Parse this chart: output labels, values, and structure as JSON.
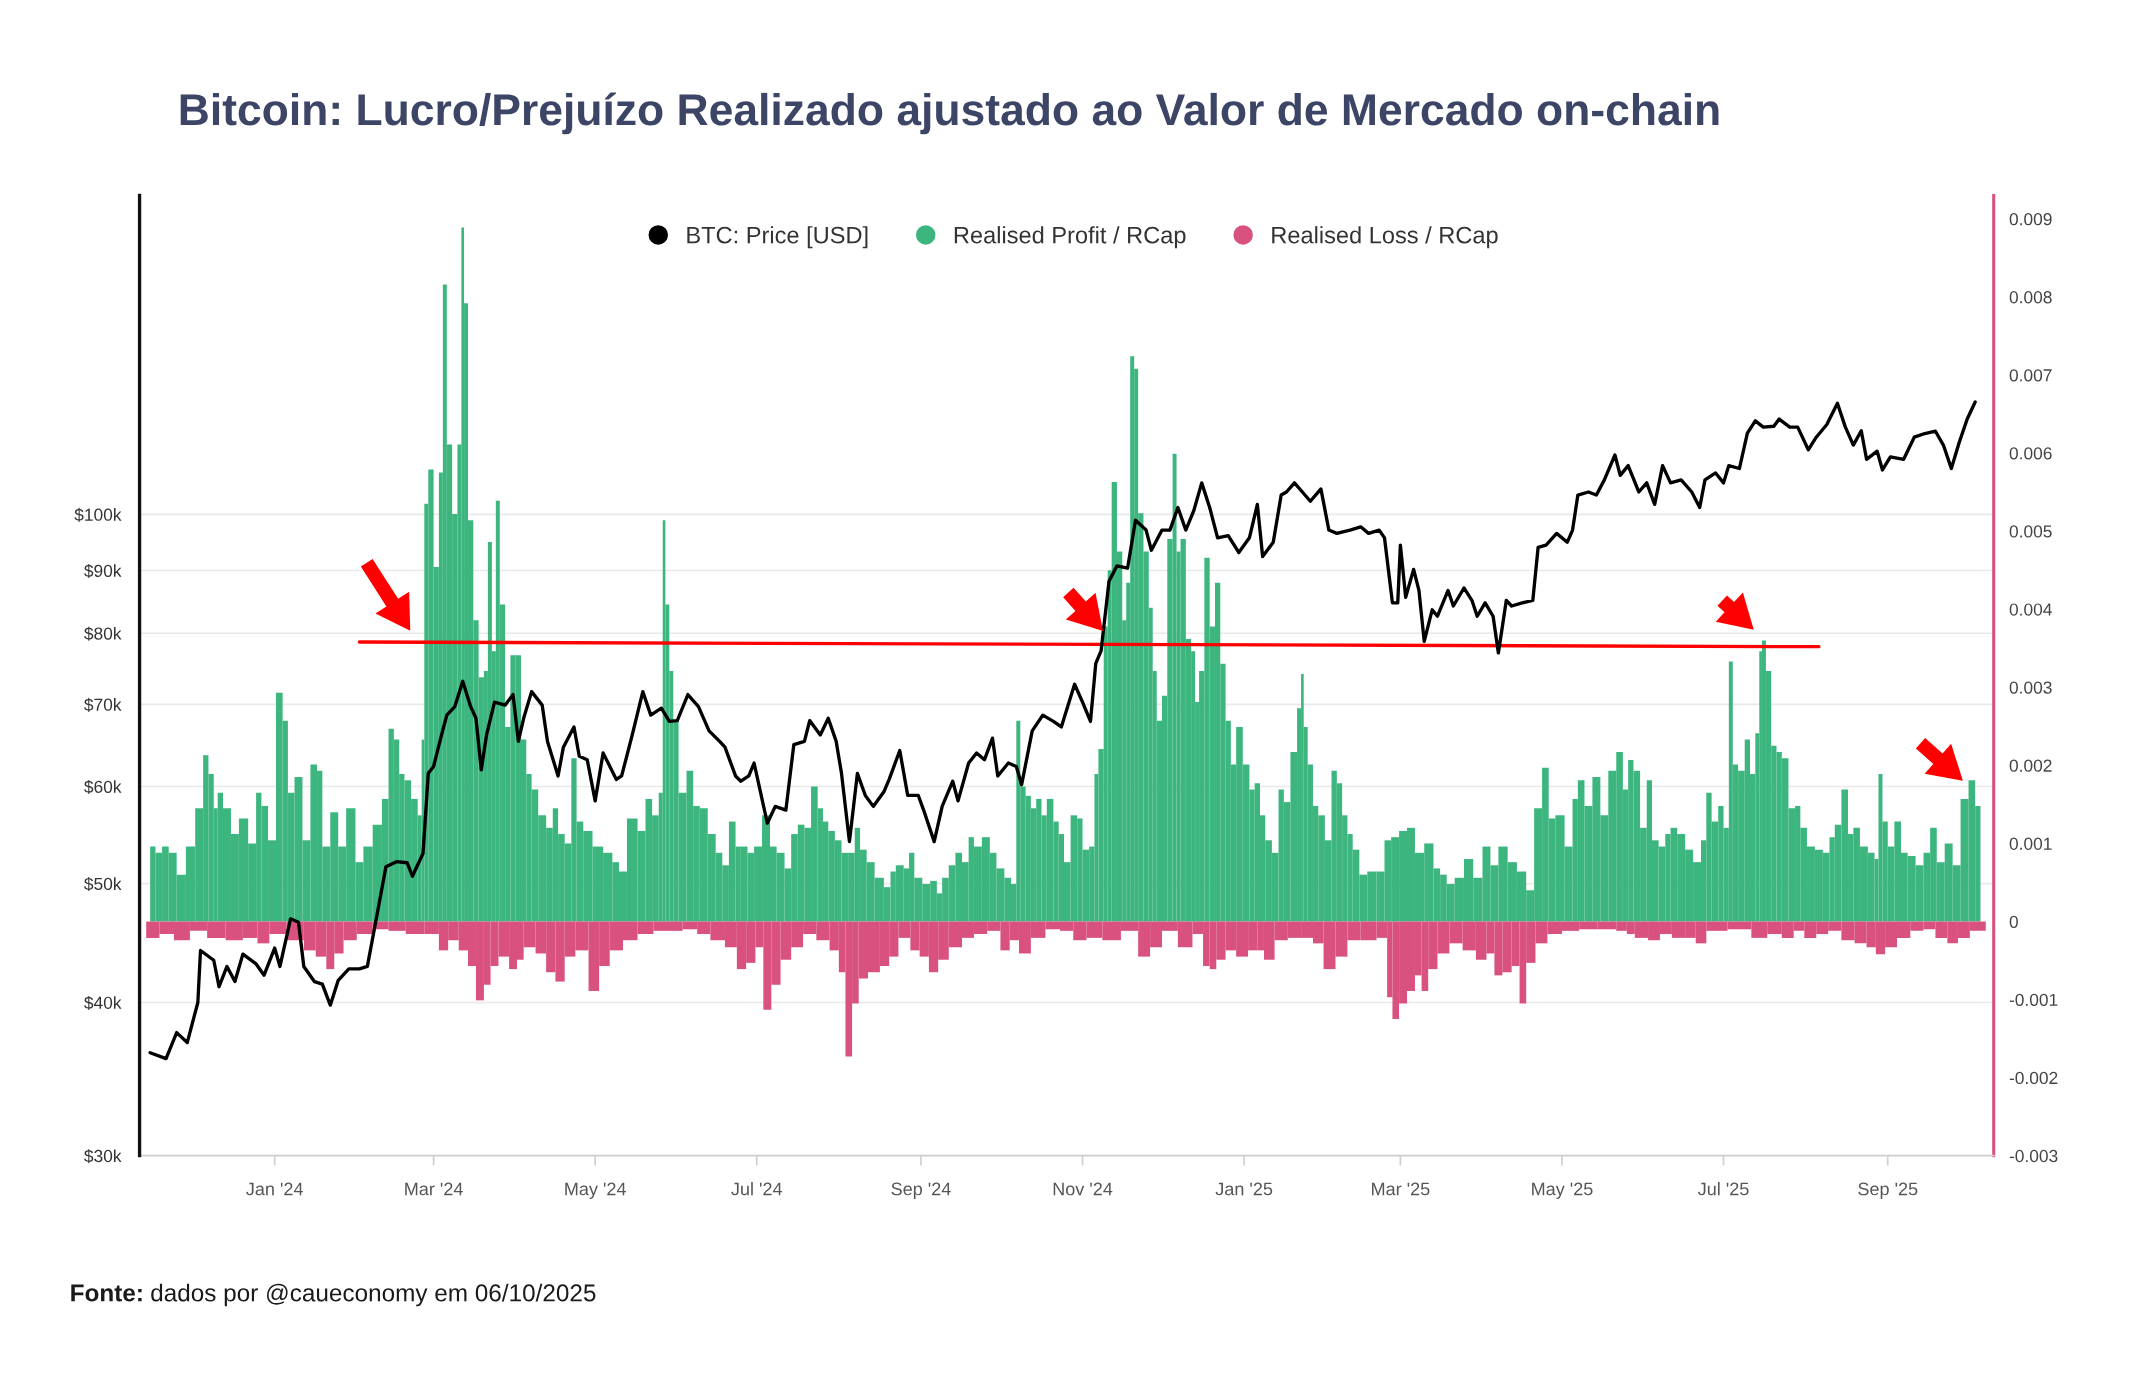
{
  "chart_data": {
    "type": "bar",
    "title": "Bitcoin: Lucro/Prejuízo Realizado ajustado ao Valor de Mercado on-chain",
    "annotations": [
      "Fonte: dados por @caueconomy em 06/10/2025"
    ],
    "stacked": true,
    "xlim": [
      "2023-11-11",
      "2025-10-11"
    ],
    "xticks": [
      {
        "value": "2024-01-01",
        "label": "Jan '24"
      },
      {
        "value": "2024-03-01",
        "label": "Mar '24"
      },
      {
        "value": "2024-05-01",
        "label": "May '24"
      },
      {
        "value": "2024-07-01",
        "label": "Jul '24"
      },
      {
        "value": "2024-09-01",
        "label": "Sep '24"
      },
      {
        "value": "2024-11-01",
        "label": "Nov '24"
      },
      {
        "value": "2025-01-01",
        "label": "Jan '25"
      },
      {
        "value": "2025-03-01",
        "label": "Mar '25"
      },
      {
        "value": "2025-05-01",
        "label": "May '25"
      },
      {
        "value": "2025-07-01",
        "label": "Jul '25"
      },
      {
        "value": "2025-09-01",
        "label": "Sep '25"
      }
    ],
    "log": "y",
    "ylim": [
      30000,
      182000
    ],
    "yticks": [
      {
        "value": 30000,
        "label": "$30k"
      },
      {
        "value": 40000,
        "label": "$40k"
      },
      {
        "value": 50000,
        "label": "$50k"
      },
      {
        "value": 60000,
        "label": "$60k"
      },
      {
        "value": 70000,
        "label": "$70k"
      },
      {
        "value": 80000,
        "label": "$80k"
      },
      {
        "value": 90000,
        "label": "$90k"
      },
      {
        "value": 100000,
        "label": "$100k"
      }
    ],
    "y2lim": [
      -0.003,
      0.0093
    ],
    "y2ticks": [
      -0.003,
      -0.002,
      -0.001,
      0,
      0.001,
      0.002,
      0.003,
      0.004,
      0.005,
      0.006,
      0.007,
      0.008,
      0.009
    ],
    "grid": "y",
    "legend": "top",
    "series": [
      {
        "name": "BTC: Price [USD]",
        "type": "line",
        "axis": "y",
        "color": "#000000",
        "x": [
          "2023-11-15",
          "2023-11-21",
          "2023-11-25",
          "2023-11-29",
          "2023-12-03",
          "2023-12-04",
          "2023-12-09",
          "2023-12-11",
          "2023-12-14",
          "2023-12-17",
          "2023-12-20",
          "2023-12-25",
          "2023-12-28",
          "2024-01-01",
          "2024-01-03",
          "2024-01-07",
          "2024-01-10",
          "2024-01-12",
          "2024-01-16",
          "2024-01-19",
          "2024-01-22",
          "2024-01-25",
          "2024-01-29",
          "2024-02-02",
          "2024-02-05",
          "2024-02-09",
          "2024-02-12",
          "2024-02-16",
          "2024-02-20",
          "2024-02-22",
          "2024-02-26",
          "2024-02-28",
          "2024-03-01",
          "2024-03-04",
          "2024-03-06",
          "2024-03-09",
          "2024-03-12",
          "2024-03-15",
          "2024-03-17",
          "2024-03-19",
          "2024-03-21",
          "2024-03-24",
          "2024-03-28",
          "2024-03-31",
          "2024-04-02",
          "2024-04-04",
          "2024-04-07",
          "2024-04-11",
          "2024-04-13",
          "2024-04-17",
          "2024-04-19",
          "2024-04-23",
          "2024-04-25",
          "2024-04-28",
          "2024-05-01",
          "2024-05-04",
          "2024-05-09",
          "2024-05-11",
          "2024-05-15",
          "2024-05-19",
          "2024-05-22",
          "2024-05-26",
          "2024-05-29",
          "2024-06-01",
          "2024-06-05",
          "2024-06-09",
          "2024-06-13",
          "2024-06-17",
          "2024-06-19",
          "2024-06-23",
          "2024-06-25",
          "2024-06-28",
          "2024-06-30",
          "2024-07-05",
          "2024-07-08",
          "2024-07-12",
          "2024-07-15",
          "2024-07-19",
          "2024-07-21",
          "2024-07-25",
          "2024-07-28",
          "2024-07-31",
          "2024-08-02",
          "2024-08-05",
          "2024-08-08",
          "2024-08-11",
          "2024-08-14",
          "2024-08-18",
          "2024-08-20",
          "2024-08-24",
          "2024-08-27",
          "2024-08-31",
          "2024-09-02",
          "2024-09-06",
          "2024-09-09",
          "2024-09-13",
          "2024-09-15",
          "2024-09-19",
          "2024-09-22",
          "2024-09-25",
          "2024-09-28",
          "2024-09-30",
          "2024-10-04",
          "2024-10-07",
          "2024-10-09",
          "2024-10-13",
          "2024-10-17",
          "2024-10-21",
          "2024-10-24",
          "2024-10-29",
          "2024-11-01",
          "2024-11-04",
          "2024-11-06",
          "2024-11-08",
          "2024-11-11",
          "2024-11-14",
          "2024-11-18",
          "2024-11-21",
          "2024-11-25",
          "2024-11-27",
          "2024-12-01",
          "2024-12-04",
          "2024-12-07",
          "2024-12-10",
          "2024-12-13",
          "2024-12-16",
          "2024-12-19",
          "2024-12-22",
          "2024-12-26",
          "2024-12-30",
          "2025-01-03",
          "2025-01-06",
          "2025-01-08",
          "2025-01-12",
          "2025-01-15",
          "2025-01-17",
          "2025-01-20",
          "2025-01-23",
          "2025-01-26",
          "2025-01-30",
          "2025-02-02",
          "2025-02-05",
          "2025-02-10",
          "2025-02-14",
          "2025-02-17",
          "2025-02-21",
          "2025-02-23",
          "2025-02-26",
          "2025-02-28",
          "2025-03-01",
          "2025-03-03",
          "2025-03-06",
          "2025-03-08",
          "2025-03-10",
          "2025-03-13",
          "2025-03-15",
          "2025-03-19",
          "2025-03-21",
          "2025-03-25",
          "2025-03-28",
          "2025-03-30",
          "2025-04-02",
          "2025-04-05",
          "2025-04-07",
          "2025-04-10",
          "2025-04-12",
          "2025-04-16",
          "2025-04-20",
          "2025-04-22",
          "2025-04-25",
          "2025-04-29",
          "2025-05-03",
          "2025-05-05",
          "2025-05-07",
          "2025-05-11",
          "2025-05-14",
          "2025-05-17",
          "2025-05-21",
          "2025-05-23",
          "2025-05-26",
          "2025-05-30",
          "2025-06-02",
          "2025-06-05",
          "2025-06-08",
          "2025-06-11",
          "2025-06-15",
          "2025-06-19",
          "2025-06-22",
          "2025-06-24",
          "2025-06-28",
          "2025-07-01",
          "2025-07-03",
          "2025-07-07",
          "2025-07-10",
          "2025-07-13",
          "2025-07-16",
          "2025-07-20",
          "2025-07-22",
          "2025-07-26",
          "2025-07-29",
          "2025-08-02",
          "2025-08-05",
          "2025-08-09",
          "2025-08-13",
          "2025-08-16",
          "2025-08-19",
          "2025-08-22",
          "2025-08-24",
          "2025-08-28",
          "2025-08-30",
          "2025-09-02",
          "2025-09-07",
          "2025-09-11",
          "2025-09-15",
          "2025-09-19",
          "2025-09-22",
          "2025-09-25",
          "2025-09-28",
          "2025-10-01",
          "2025-10-04"
        ],
        "values": [
          36400,
          36000,
          37800,
          37100,
          40000,
          44100,
          43300,
          41200,
          42800,
          41600,
          43800,
          43000,
          42100,
          44300,
          42800,
          46800,
          46500,
          42800,
          41600,
          41400,
          39800,
          41700,
          42600,
          42600,
          42800,
          47600,
          51600,
          52100,
          52000,
          50700,
          52900,
          61500,
          62300,
          66100,
          68600,
          69700,
          73100,
          69700,
          68200,
          61900,
          66100,
          70300,
          69900,
          71300,
          65300,
          68200,
          71700,
          69900,
          65300,
          61200,
          64600,
          67100,
          63500,
          63100,
          58400,
          63900,
          60800,
          61200,
          66100,
          71700,
          68600,
          69500,
          67800,
          67900,
          71300,
          69700,
          66600,
          65300,
          64600,
          61200,
          60600,
          61200,
          62700,
          56000,
          57800,
          57400,
          64900,
          65300,
          67900,
          66100,
          68200,
          65300,
          61500,
          54100,
          61500,
          59000,
          57800,
          59400,
          60800,
          64200,
          59000,
          59000,
          57400,
          54100,
          57800,
          60600,
          58400,
          62700,
          63900,
          63100,
          65700,
          61200,
          62700,
          62300,
          60200,
          66600,
          68600,
          67800,
          67100,
          72700,
          70300,
          67800,
          75600,
          77400,
          88200,
          90800,
          90400,
          98900,
          97100,
          93500,
          97100,
          97100,
          101300,
          97100,
          100700,
          106100,
          101300,
          95700,
          96100,
          93100,
          95700,
          101900,
          92400,
          94900,
          103700,
          104300,
          106100,
          104300,
          102500,
          104900,
          97100,
          96500,
          97100,
          97700,
          96500,
          97100,
          95700,
          84700,
          84700,
          94400,
          85600,
          90200,
          86700,
          78800,
          83600,
          82600,
          86700,
          84200,
          87100,
          85100,
          82600,
          84700,
          82600,
          77100,
          85100,
          84200,
          84700,
          85100,
          94000,
          94400,
          96500,
          94900,
          97100,
          103700,
          104300,
          103700,
          106700,
          111800,
          107600,
          109600,
          104300,
          106100,
          101900,
          109600,
          106100,
          106700,
          104300,
          101300,
          106700,
          108100,
          106100,
          109600,
          109000,
          116500,
          119200,
          117800,
          118000,
          119600,
          117800,
          117800,
          112900,
          115600,
          118400,
          123200,
          117800,
          113900,
          117000,
          110900,
          112600,
          108700,
          111400,
          110900,
          115600,
          116400,
          116900,
          113900,
          109000,
          114500,
          119600,
          123500
        ]
      },
      {
        "name": "Realised Profit / RCap",
        "axis": "y2",
        "color": "#3cb67e",
        "x": [
          "2023-11-16",
          "2023-11-18",
          "2023-11-21",
          "2023-11-23",
          "2023-11-27",
          "2023-11-30",
          "2023-12-04",
          "2023-12-06",
          "2023-12-08",
          "2023-12-10",
          "2023-12-11",
          "2023-12-14",
          "2023-12-17",
          "2023-12-20",
          "2023-12-24",
          "2023-12-26",
          "2023-12-28",
          "2023-12-31",
          "2024-01-03",
          "2024-01-05",
          "2024-01-07",
          "2024-01-10",
          "2024-01-13",
          "2024-01-16",
          "2024-01-18",
          "2024-01-20",
          "2024-01-24",
          "2024-01-26",
          "2024-01-30",
          "2024-02-02",
          "2024-02-05",
          "2024-02-09",
          "2024-02-12",
          "2024-02-14",
          "2024-02-16",
          "2024-02-18",
          "2024-02-20",
          "2024-02-23",
          "2024-02-25",
          "2024-02-26",
          "2024-02-27",
          "2024-02-29",
          "2024-03-02",
          "2024-03-04",
          "2024-03-05",
          "2024-03-07",
          "2024-03-09",
          "2024-03-11",
          "2024-03-12",
          "2024-03-13",
          "2024-03-15",
          "2024-03-17",
          "2024-03-19",
          "2024-03-21",
          "2024-03-22",
          "2024-03-24",
          "2024-03-25",
          "2024-03-27",
          "2024-03-29",
          "2024-03-31",
          "2024-04-02",
          "2024-04-04",
          "2024-04-06",
          "2024-04-08",
          "2024-04-11",
          "2024-04-14",
          "2024-04-16",
          "2024-04-18",
          "2024-04-21",
          "2024-04-23",
          "2024-04-25",
          "2024-04-28",
          "2024-05-02",
          "2024-05-06",
          "2024-05-09",
          "2024-05-11",
          "2024-05-15",
          "2024-05-19",
          "2024-05-21",
          "2024-05-24",
          "2024-05-26",
          "2024-05-27",
          "2024-05-28",
          "2024-05-30",
          "2024-05-31",
          "2024-06-03",
          "2024-06-06",
          "2024-06-08",
          "2024-06-11",
          "2024-06-14",
          "2024-06-17",
          "2024-06-19",
          "2024-06-22",
          "2024-06-24",
          "2024-06-26",
          "2024-06-29",
          "2024-07-01",
          "2024-07-05",
          "2024-07-07",
          "2024-07-10",
          "2024-07-13",
          "2024-07-15",
          "2024-07-18",
          "2024-07-20",
          "2024-07-23",
          "2024-07-25",
          "2024-07-27",
          "2024-07-29",
          "2024-08-01",
          "2024-08-03",
          "2024-08-06",
          "2024-08-08",
          "2024-08-10",
          "2024-08-13",
          "2024-08-16",
          "2024-08-20",
          "2024-08-21",
          "2024-08-24",
          "2024-08-27",
          "2024-08-28",
          "2024-08-31",
          "2024-09-03",
          "2024-09-06",
          "2024-09-08",
          "2024-09-10",
          "2024-09-13",
          "2024-09-15",
          "2024-09-18",
          "2024-09-20",
          "2024-09-22",
          "2024-09-26",
          "2024-09-28",
          "2024-10-01",
          "2024-10-04",
          "2024-10-06",
          "2024-10-08",
          "2024-10-09",
          "2024-10-12",
          "2024-10-13",
          "2024-10-16",
          "2024-10-17",
          "2024-10-20",
          "2024-10-22",
          "2024-10-24",
          "2024-10-26",
          "2024-10-29",
          "2024-10-31",
          "2024-11-02",
          "2024-11-05",
          "2024-11-06",
          "2024-11-08",
          "2024-11-10",
          "2024-11-11",
          "2024-11-13",
          "2024-11-15",
          "2024-11-17",
          "2024-11-18",
          "2024-11-20",
          "2024-11-21",
          "2024-11-23",
          "2024-11-25",
          "2024-11-27",
          "2024-11-28",
          "2024-11-30",
          "2024-12-02",
          "2024-12-04",
          "2024-12-06",
          "2024-12-07",
          "2024-12-09",
          "2024-12-11",
          "2024-12-13",
          "2024-12-14",
          "2024-12-16",
          "2024-12-18",
          "2024-12-20",
          "2024-12-22",
          "2024-12-24",
          "2024-12-26",
          "2024-12-28",
          "2024-12-30",
          "2025-01-02",
          "2025-01-04",
          "2025-01-06",
          "2025-01-08",
          "2025-01-10",
          "2025-01-13",
          "2025-01-15",
          "2025-01-17",
          "2025-01-20",
          "2025-01-22",
          "2025-01-23",
          "2025-01-24",
          "2025-01-26",
          "2025-01-28",
          "2025-01-30",
          "2025-02-02",
          "2025-02-04",
          "2025-02-06",
          "2025-02-08",
          "2025-02-10",
          "2025-02-12",
          "2025-02-15",
          "2025-02-18",
          "2025-02-22",
          "2025-02-24",
          "2025-02-27",
          "2025-03-02",
          "2025-03-05",
          "2025-03-08",
          "2025-03-12",
          "2025-03-15",
          "2025-03-17",
          "2025-03-20",
          "2025-03-23",
          "2025-03-27",
          "2025-03-30",
          "2025-04-03",
          "2025-04-05",
          "2025-04-09",
          "2025-04-12",
          "2025-04-16",
          "2025-04-19",
          "2025-04-22",
          "2025-04-25",
          "2025-04-27",
          "2025-04-30",
          "2025-05-04",
          "2025-05-06",
          "2025-05-08",
          "2025-05-11",
          "2025-05-14",
          "2025-05-17",
          "2025-05-20",
          "2025-05-23",
          "2025-05-25",
          "2025-05-27",
          "2025-05-29",
          "2025-06-01",
          "2025-06-03",
          "2025-06-05",
          "2025-06-08",
          "2025-06-10",
          "2025-06-12",
          "2025-06-15",
          "2025-06-18",
          "2025-06-21",
          "2025-06-24",
          "2025-06-25",
          "2025-06-28",
          "2025-06-30",
          "2025-07-02",
          "2025-07-04",
          "2025-07-05",
          "2025-07-08",
          "2025-07-10",
          "2025-07-12",
          "2025-07-14",
          "2025-07-15",
          "2025-07-16",
          "2025-07-18",
          "2025-07-20",
          "2025-07-22",
          "2025-07-24",
          "2025-07-27",
          "2025-07-29",
          "2025-07-31",
          "2025-08-03",
          "2025-08-06",
          "2025-08-09",
          "2025-08-11",
          "2025-08-13",
          "2025-08-16",
          "2025-08-18",
          "2025-08-20",
          "2025-08-23",
          "2025-08-26",
          "2025-08-28",
          "2025-08-29",
          "2025-08-31",
          "2025-09-02",
          "2025-09-05",
          "2025-09-07",
          "2025-09-10",
          "2025-09-13",
          "2025-09-16",
          "2025-09-18",
          "2025-09-21",
          "2025-09-24",
          "2025-09-27",
          "2025-09-30",
          "2025-10-03",
          "2025-10-05"
        ],
        "values": [
          0.00096,
          0.00088,
          0.00096,
          0.00088,
          0.0006,
          0.00096,
          0.00145,
          0.00213,
          0.00189,
          0.00145,
          0.00165,
          0.00145,
          0.00112,
          0.00132,
          0.001,
          0.00165,
          0.00148,
          0.00104,
          0.00293,
          0.00257,
          0.00165,
          0.00185,
          0.00104,
          0.00201,
          0.00193,
          0.00096,
          0.0014,
          0.00096,
          0.00145,
          0.00076,
          0.00096,
          0.00124,
          0.00157,
          0.00247,
          0.00233,
          0.00189,
          0.00181,
          0.00157,
          0.00136,
          0.00233,
          0.00535,
          0.00579,
          0.00454,
          0.00575,
          0.00816,
          0.00611,
          0.00522,
          0.00611,
          0.00889,
          0.00792,
          0.00514,
          0.00386,
          0.00313,
          0.00321,
          0.00486,
          0.00346,
          0.00539,
          0.00406,
          0.00249,
          0.00341,
          0.00341,
          0.00233,
          0.00189,
          0.00169,
          0.00136,
          0.0012,
          0.00145,
          0.00112,
          0.001,
          0.00209,
          0.00128,
          0.00116,
          0.00096,
          0.00088,
          0.00076,
          0.00064,
          0.00132,
          0.00116,
          0.00157,
          0.00136,
          0.00165,
          0.00514,
          0.00406,
          0.00321,
          0.00257,
          0.00165,
          0.00193,
          0.00148,
          0.00145,
          0.00112,
          0.00088,
          0.00072,
          0.00128,
          0.00096,
          0.00096,
          0.00088,
          0.00096,
          0.00136,
          0.00096,
          0.00088,
          0.00068,
          0.00112,
          0.00124,
          0.0012,
          0.00173,
          0.00145,
          0.00128,
          0.00116,
          0.00104,
          0.00088,
          0.00088,
          0.0012,
          0.00092,
          0.00076,
          0.00056,
          0.00044,
          0.00064,
          0.00072,
          0.00068,
          0.00088,
          0.00056,
          0.00048,
          0.00052,
          0.00036,
          0.00056,
          0.00072,
          0.00088,
          0.00076,
          0.00108,
          0.00096,
          0.00108,
          0.00088,
          0.00068,
          0.00056,
          0.00048,
          0.00257,
          0.00173,
          0.00161,
          0.00145,
          0.00157,
          0.00136,
          0.00157,
          0.00128,
          0.00112,
          0.00076,
          0.00136,
          0.00132,
          0.00092,
          0.00096,
          0.00189,
          0.00221,
          0.00378,
          0.0045,
          0.00563,
          0.00474,
          0.00386,
          0.00434,
          0.00724,
          0.00708,
          0.00523,
          0.00474,
          0.00402,
          0.00321,
          0.00257,
          0.00289,
          0.0049,
          0.00599,
          0.00474,
          0.0049,
          0.00362,
          0.00346,
          0.00281,
          0.00321,
          0.00466,
          0.00378,
          0.00434,
          0.0033,
          0.00257,
          0.00201,
          0.00249,
          0.00201,
          0.00169,
          0.00177,
          0.00136,
          0.00104,
          0.00088,
          0.00169,
          0.00153,
          0.00217,
          0.00273,
          0.00317,
          0.00249,
          0.00201,
          0.00148,
          0.00136,
          0.00104,
          0.00193,
          0.00177,
          0.00136,
          0.00112,
          0.00092,
          0.0006,
          0.00064,
          0.00064,
          0.00104,
          0.00108,
          0.00116,
          0.0012,
          0.00088,
          0.001,
          0.00068,
          0.0006,
          0.00048,
          0.00056,
          0.0008,
          0.00056,
          0.00096,
          0.00072,
          0.00096,
          0.00076,
          0.00064,
          0.0004,
          0.00145,
          0.00197,
          0.00132,
          0.00136,
          0.00096,
          0.00157,
          0.00181,
          0.00148,
          0.00185,
          0.00136,
          0.00193,
          0.00217,
          0.00169,
          0.00207,
          0.00193,
          0.0012,
          0.00181,
          0.00104,
          0.00096,
          0.00112,
          0.0012,
          0.00112,
          0.00092,
          0.00076,
          0.00104,
          0.00165,
          0.00128,
          0.00148,
          0.0012,
          0.00333,
          0.00201,
          0.00193,
          0.00233,
          0.00189,
          0.00241,
          0.00346,
          0.0036,
          0.00321,
          0.00225,
          0.00217,
          0.00209,
          0.00145,
          0.00148,
          0.0012,
          0.00096,
          0.00092,
          0.00088,
          0.00108,
          0.00124,
          0.00169,
          0.00112,
          0.0012,
          0.00096,
          0.00088,
          0.0008,
          0.00189,
          0.00128,
          0.00096,
          0.00128,
          0.00088,
          0.00084,
          0.00072,
          0.00088,
          0.0012,
          0.00076,
          0.001,
          0.00072,
          0.00157,
          0.00181,
          0.00148
        ]
      },
      {
        "name": "Realised Loss / RCap",
        "axis": "y2",
        "color": "#d9527f",
        "x": [
          "2023-11-16",
          "2023-11-21",
          "2023-11-27",
          "2023-12-03",
          "2023-12-10",
          "2023-12-17",
          "2023-12-23",
          "2023-12-28",
          "2024-01-01",
          "2024-01-10",
          "2024-01-14",
          "2024-01-19",
          "2024-01-22",
          "2024-01-25",
          "2024-01-29",
          "2024-02-04",
          "2024-02-10",
          "2024-02-16",
          "2024-02-23",
          "2024-03-01",
          "2024-03-05",
          "2024-03-08",
          "2024-03-13",
          "2024-03-15",
          "2024-03-19",
          "2024-03-21",
          "2024-03-24",
          "2024-03-27",
          "2024-04-01",
          "2024-04-02",
          "2024-04-06",
          "2024-04-11",
          "2024-04-14",
          "2024-04-18",
          "2024-04-21",
          "2024-04-26",
          "2024-05-01",
          "2024-05-04",
          "2024-05-09",
          "2024-05-14",
          "2024-05-20",
          "2024-05-26",
          "2024-05-31",
          "2024-06-06",
          "2024-06-11",
          "2024-06-16",
          "2024-06-22",
          "2024-06-25",
          "2024-06-29",
          "2024-07-02",
          "2024-07-05",
          "2024-07-08",
          "2024-07-12",
          "2024-07-16",
          "2024-07-21",
          "2024-07-26",
          "2024-07-31",
          "2024-08-02",
          "2024-08-05",
          "2024-08-07",
          "2024-08-10",
          "2024-08-14",
          "2024-08-19",
          "2024-08-21",
          "2024-08-26",
          "2024-08-30",
          "2024-09-02",
          "2024-09-06",
          "2024-09-09",
          "2024-09-14",
          "2024-09-19",
          "2024-09-23",
          "2024-09-29",
          "2024-10-03",
          "2024-10-06",
          "2024-10-10",
          "2024-10-15",
          "2024-10-21",
          "2024-10-26",
          "2024-10-31",
          "2024-11-05",
          "2024-11-12",
          "2024-11-19",
          "2024-11-25",
          "2024-11-28",
          "2024-12-04",
          "2024-12-10",
          "2024-12-15",
          "2024-12-18",
          "2024-12-20",
          "2024-12-23",
          "2024-12-27",
          "2024-12-31",
          "2025-01-05",
          "2025-01-07",
          "2025-01-10",
          "2025-01-15",
          "2025-01-20",
          "2025-01-25",
          "2025-01-29",
          "2025-02-02",
          "2025-02-07",
          "2025-02-11",
          "2025-02-17",
          "2025-02-23",
          "2025-02-25",
          "2025-02-27",
          "2025-03-02",
          "2025-03-05",
          "2025-03-08",
          "2025-03-10",
          "2025-03-13",
          "2025-03-17",
          "2025-03-22",
          "2025-03-27",
          "2025-04-01",
          "2025-04-04",
          "2025-04-07",
          "2025-04-10",
          "2025-04-14",
          "2025-04-16",
          "2025-04-19",
          "2025-04-23",
          "2025-04-28",
          "2025-05-04",
          "2025-05-11",
          "2025-05-18",
          "2025-05-25",
          "2025-05-26",
          "2025-05-31",
          "2025-06-05",
          "2025-06-09",
          "2025-06-14",
          "2025-06-19",
          "2025-06-22",
          "2025-06-27",
          "2025-07-08",
          "2025-07-15",
          "2025-07-20",
          "2025-07-26",
          "2025-07-29",
          "2025-08-03",
          "2025-08-07",
          "2025-08-12",
          "2025-08-17",
          "2025-08-22",
          "2025-08-26",
          "2025-08-29",
          "2025-09-02",
          "2025-09-07",
          "2025-09-12",
          "2025-09-17",
          "2025-09-21",
          "2025-09-26",
          "2025-09-29",
          "2025-10-05"
        ],
        "values": [
          -0.00021,
          -0.00016,
          -0.00024,
          -0.00012,
          -0.00021,
          -0.00024,
          -0.00021,
          -0.00028,
          -0.00016,
          -0.00024,
          -0.00037,
          -0.00045,
          -0.00061,
          -0.00041,
          -0.00024,
          -0.00016,
          -0.0001,
          -0.00012,
          -0.00016,
          -0.00016,
          -0.00037,
          -0.00024,
          -0.00037,
          -0.00057,
          -0.00101,
          -0.00081,
          -0.00057,
          -0.00045,
          -0.00061,
          -0.00049,
          -0.00033,
          -0.00041,
          -0.00065,
          -0.00077,
          -0.00045,
          -0.00037,
          -0.00089,
          -0.00057,
          -0.00037,
          -0.00024,
          -0.00016,
          -0.00012,
          -0.00012,
          -0.0001,
          -0.00016,
          -0.00024,
          -0.00033,
          -0.00061,
          -0.00053,
          -0.00033,
          -0.00113,
          -0.00081,
          -0.00049,
          -0.00033,
          -0.00016,
          -0.00024,
          -0.00037,
          -0.00065,
          -0.00173,
          -0.00105,
          -0.00073,
          -0.00065,
          -0.00057,
          -0.00045,
          -0.00021,
          -0.00037,
          -0.00045,
          -0.00065,
          -0.00049,
          -0.00033,
          -0.00021,
          -0.00016,
          -0.00012,
          -0.00037,
          -0.00024,
          -0.00041,
          -0.00021,
          -0.0001,
          -0.00012,
          -0.00024,
          -0.00021,
          -0.00024,
          -0.00012,
          -0.00045,
          -0.00033,
          -0.00012,
          -0.00033,
          -0.00016,
          -0.00057,
          -0.00061,
          -0.00049,
          -0.00037,
          -0.00045,
          -0.00037,
          -0.00037,
          -0.00049,
          -0.00024,
          -0.00021,
          -0.00021,
          -0.00028,
          -0.00061,
          -0.00045,
          -0.00024,
          -0.00024,
          -0.00021,
          -0.00097,
          -0.00125,
          -0.00105,
          -0.00089,
          -0.00069,
          -0.00089,
          -0.00061,
          -0.00041,
          -0.00028,
          -0.00037,
          -0.00049,
          -0.00041,
          -0.00069,
          -0.00065,
          -0.00057,
          -0.00105,
          -0.00053,
          -0.00028,
          -0.00016,
          -0.00012,
          -0.0001,
          -0.0001,
          -0.00012,
          -0.00016,
          -0.00021,
          -0.00024,
          -0.00016,
          -0.00021,
          -0.00021,
          -0.00028,
          -0.00012,
          -0.0001,
          -0.00021,
          -0.00016,
          -0.00021,
          -0.00012,
          -0.00021,
          -0.00016,
          -0.00012,
          -0.00024,
          -0.00028,
          -0.00033,
          -0.00042,
          -0.00033,
          -0.00021,
          -0.00012,
          -0.0001,
          -0.00021,
          -0.00028,
          -0.00021,
          -0.00012
        ]
      },
      {
        "type": "line",
        "axis": "y2",
        "color": "#ff0000",
        "x": [
          "2024-02-02",
          "2025-08-06"
        ],
        "values": [
          0.00358,
          0.00352
        ]
      }
    ]
  }
}
